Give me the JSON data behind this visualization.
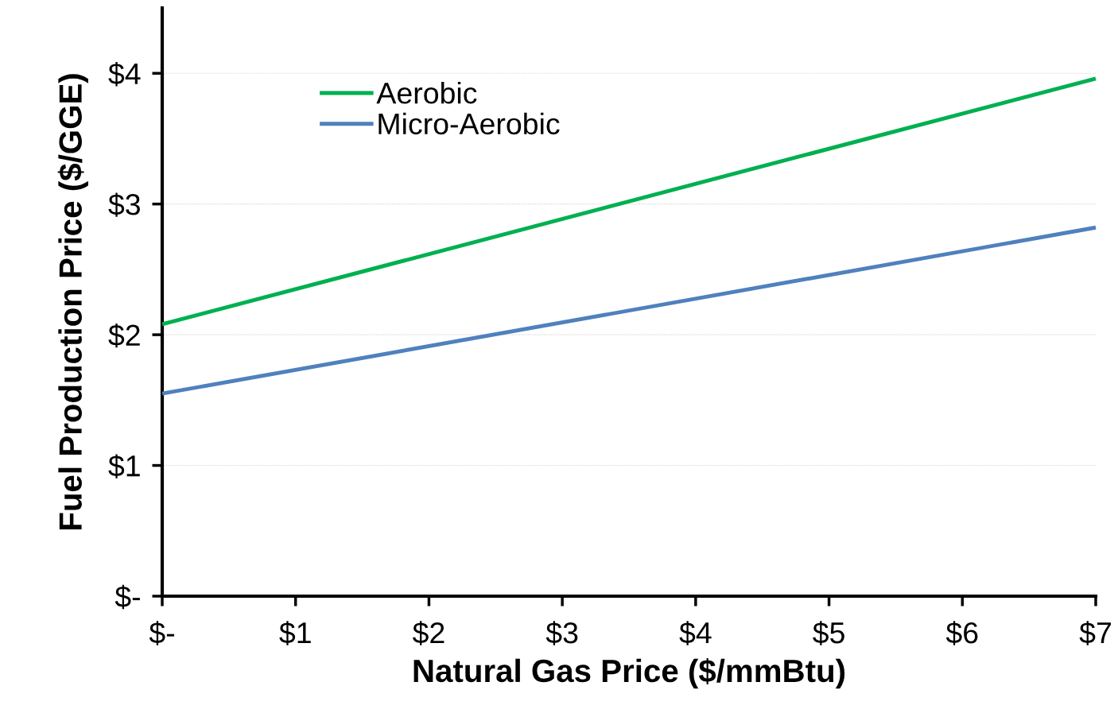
{
  "chart_data": {
    "type": "line",
    "xlabel": "Natural Gas Price ($/mmBtu)",
    "ylabel": "Fuel Production Price ($/GGE)",
    "series": [
      {
        "name": "Aerobic",
        "color": "#00b050",
        "values": [
          2.08,
          3.96
        ]
      },
      {
        "name": "Micro-Aerobic",
        "color": "#4f81bd",
        "values": [
          1.55,
          2.82
        ]
      }
    ],
    "x": [
      0,
      7
    ],
    "xlim": [
      0,
      7
    ],
    "ylim": [
      0,
      4.5
    ],
    "xticks": [
      {
        "value": 0,
        "label": "$-"
      },
      {
        "value": 1,
        "label": "$1"
      },
      {
        "value": 2,
        "label": "$2"
      },
      {
        "value": 3,
        "label": "$3"
      },
      {
        "value": 4,
        "label": "$4"
      },
      {
        "value": 5,
        "label": "$5"
      },
      {
        "value": 6,
        "label": "$6"
      },
      {
        "value": 7,
        "label": "$7"
      }
    ],
    "yticks": [
      {
        "value": 0,
        "label": "$-"
      },
      {
        "value": 1,
        "label": "$1"
      },
      {
        "value": 2,
        "label": "$2"
      },
      {
        "value": 3,
        "label": "$3"
      },
      {
        "value": 4,
        "label": "$4"
      }
    ],
    "grid": "y",
    "legend": "top left",
    "marker": "none",
    "line_style": "solid"
  }
}
